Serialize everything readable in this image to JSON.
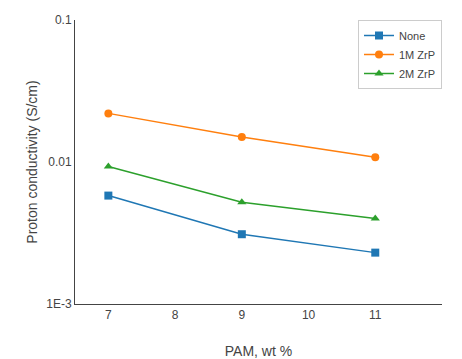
{
  "chart_data": {
    "type": "line",
    "x": [
      7,
      9,
      11
    ],
    "series": [
      {
        "name": "None",
        "values": [
          0.0058,
          0.0031,
          0.0023
        ],
        "marker": "square"
      },
      {
        "name": "1M ZrP",
        "values": [
          0.022,
          0.015,
          0.0108
        ],
        "marker": "circle"
      },
      {
        "name": "2M ZrP",
        "values": [
          0.0093,
          0.0052,
          0.004
        ],
        "marker": "triangle"
      }
    ],
    "xlabel": "PAM, wt %",
    "ylabel": "Proton conductivity (S/cm)",
    "xlim": [
      6.5,
      12.0
    ],
    "ylim": [
      0.001,
      0.1
    ],
    "xticks": [
      7,
      8,
      9,
      10,
      11
    ],
    "yticks": [
      {
        "value": 0.001,
        "label": "1E-3"
      },
      0.01,
      0.1
    ],
    "log": "y",
    "grid": false,
    "legend": "upper right"
  }
}
